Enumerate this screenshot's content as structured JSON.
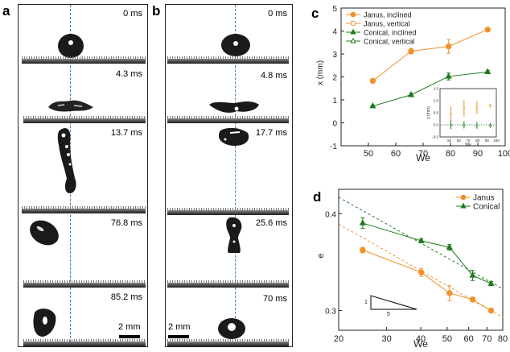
{
  "panels": {
    "a": {
      "letter": "a",
      "frames": [
        "0 ms",
        "4.3 ms",
        "13.7 ms",
        "76.8 ms",
        "85.2 ms"
      ],
      "scale_bar": "2 mm"
    },
    "b": {
      "letter": "b",
      "frames": [
        "0 ms",
        "4.8 ms",
        "17.7 ms",
        "25.6 ms",
        "70 ms"
      ],
      "scale_bar": "2 mm"
    }
  },
  "colors": {
    "janus": "#f0912a",
    "conical": "#1f7a1f",
    "dash": "#3a7fc0"
  },
  "chart_data": [
    {
      "panel": "c",
      "type": "line",
      "xlabel": "We",
      "ylabel": "x (mm)",
      "xlim": [
        40,
        100
      ],
      "ylim": [
        -1,
        5
      ],
      "xticks": [
        50,
        60,
        70,
        80,
        90,
        100
      ],
      "yticks": [
        -1,
        0,
        1,
        2,
        3,
        4,
        5
      ],
      "legend_position": "top-left",
      "legend": [
        "Janus, inclined",
        "Janus, vertical",
        "Conical, inclined",
        "Conical, vertical"
      ],
      "series": [
        {
          "name": "Janus, inclined",
          "x": [
            51.6,
            65.6,
            79.3,
            93.6
          ],
          "y": [
            1.83,
            3.12,
            3.33,
            4.06
          ],
          "yerr": [
            0.08,
            0.12,
            0.3,
            0.05
          ]
        },
        {
          "name": "Conical, inclined",
          "x": [
            51.6,
            65.6,
            79.3,
            93.6
          ],
          "y": [
            0.73,
            1.22,
            2.02,
            2.22
          ],
          "yerr": [
            0.03,
            0.05,
            0.15,
            0.06
          ]
        }
      ],
      "inset": {
        "xlabel": "We",
        "ylabel": "y (mm)",
        "xlim": [
          40,
          100
        ],
        "ylim": [
          -0.5,
          1.5
        ],
        "xticks": [
          50,
          60,
          70,
          80,
          90,
          100
        ],
        "yticks": [
          -0.5,
          0.0,
          0.5,
          1.0,
          1.5
        ],
        "ytick_labels": [
          "-0.5",
          "0.0",
          "0.5",
          "1.0",
          "1.5"
        ],
        "series": [
          {
            "name": "Janus, vertical",
            "x": [
              51.6,
              65.6,
              79.3,
              93.6
            ],
            "y": [
              0.45,
              0.68,
              0.72,
              0.8
            ],
            "yerr": [
              0.32,
              0.35,
              0.27,
              0.08
            ]
          },
          {
            "name": "Conical, vertical",
            "x": [
              51.6,
              65.6,
              79.3,
              93.6
            ],
            "y": [
              0.0,
              0.0,
              -0.02,
              -0.02
            ],
            "yerr": [
              0.18,
              0.15,
              0.14,
              0.1
            ]
          }
        ],
        "reference_line_y": 0.0
      }
    },
    {
      "panel": "d",
      "type": "line",
      "xlabel": "We",
      "ylabel": "e",
      "xscale": "log",
      "yscale": "log",
      "xlim": [
        20,
        80
      ],
      "ylim": [
        0.283,
        0.43
      ],
      "xticks": [
        20,
        30,
        40,
        50,
        60,
        70,
        80
      ],
      "yticks": [
        0.3,
        0.4
      ],
      "legend_position": "top-right",
      "legend": [
        "Janus",
        "Conical"
      ],
      "series": [
        {
          "name": "Janus",
          "x": [
            24.5,
            40.2,
            51.0,
            62.0,
            72.5
          ],
          "y": [
            0.359,
            0.336,
            0.316,
            0.31,
            0.3
          ],
          "yerr": [
            0.003,
            0.004,
            0.007,
            0.002,
            0.002
          ]
        },
        {
          "name": "Conical",
          "x": [
            24.5,
            40.2,
            51.0,
            62.0,
            72.5
          ],
          "y": [
            0.389,
            0.369,
            0.362,
            0.333,
            0.325
          ],
          "yerr": [
            0.006,
            0.002,
            0.003,
            0.005,
            0.002
          ]
        }
      ],
      "fit_lines": [
        {
          "name": "Janus fit",
          "x": [
            20,
            80
          ],
          "y": [
            0.388,
            0.294
          ]
        },
        {
          "name": "Conical fit",
          "x": [
            20,
            80
          ],
          "y": [
            0.42,
            0.32
          ]
        }
      ],
      "slope_triangle": {
        "rise": "1",
        "run": "5"
      }
    }
  ]
}
